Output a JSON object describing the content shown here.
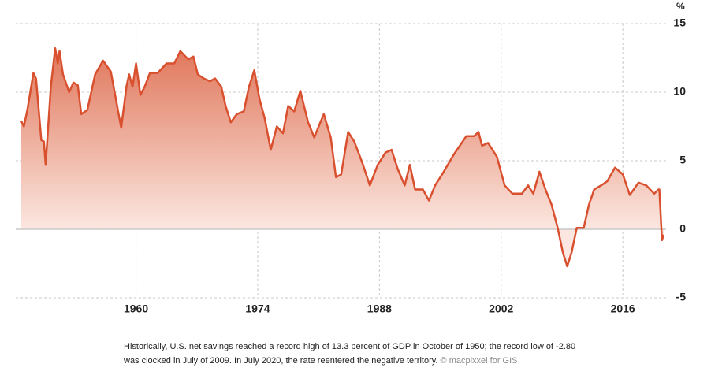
{
  "chart_data": {
    "type": "line",
    "unit": "%",
    "x": [
      1946.8,
      1947.1,
      1947.5,
      1948.2,
      1948.5,
      1949.1,
      1949.4,
      1949.6,
      1950.2,
      1950.7,
      1951.0,
      1951.2,
      1951.6,
      1952.3,
      1952.8,
      1953.3,
      1953.7,
      1954.4,
      1955.3,
      1956.2,
      1957.1,
      1958.0,
      1958.3,
      1958.9,
      1959.2,
      1959.6,
      1960.0,
      1960.5,
      1961.0,
      1961.6,
      1962.5,
      1963.5,
      1964.4,
      1965.1,
      1966.0,
      1966.6,
      1967.1,
      1967.8,
      1968.5,
      1969.1,
      1969.8,
      1970.3,
      1970.9,
      1971.6,
      1972.4,
      1973.0,
      1973.6,
      1974.2,
      1974.8,
      1975.5,
      1976.2,
      1976.9,
      1977.5,
      1978.2,
      1978.9,
      1979.8,
      1980.5,
      1981.2,
      1981.6,
      1982.4,
      1983.0,
      1983.6,
      1984.4,
      1985.1,
      1986.0,
      1986.9,
      1987.8,
      1988.7,
      1989.4,
      1990.1,
      1990.9,
      1991.5,
      1992.1,
      1993.0,
      1993.7,
      1994.4,
      1995.3,
      1996.6,
      1998.0,
      1998.9,
      1999.4,
      1999.8,
      2000.5,
      2001.5,
      2002.4,
      2003.3,
      2004.4,
      2005.1,
      2005.7,
      2006.4,
      2007.1,
      2007.8,
      2008.5,
      2009.1,
      2009.6,
      2010.1,
      2010.7,
      2011.5,
      2012.1,
      2012.7,
      2013.5,
      2014.2,
      2015.1,
      2016.0,
      2016.8,
      2017.8,
      2018.7,
      2019.6,
      2020.1,
      2020.2,
      2020.5,
      2020.7
    ],
    "series": [
      {
        "name": "Net savings",
        "color": "#d9502f",
        "values": [
          7.9,
          7.5,
          8.7,
          11.4,
          11,
          6.5,
          6.4,
          4.7,
          10.4,
          13.2,
          12.1,
          13,
          11.3,
          10,
          10.7,
          10.5,
          8.4,
          8.7,
          11.3,
          12.3,
          11.5,
          8.4,
          7.4,
          10.4,
          11.3,
          10.4,
          12.1,
          9.8,
          10.4,
          11.4,
          11.4,
          12.1,
          12.1,
          13,
          12.4,
          12.6,
          11.3,
          11,
          10.8,
          11,
          10.4,
          9,
          7.8,
          8.4,
          8.6,
          10.4,
          11.6,
          9.5,
          8.1,
          5.8,
          7.5,
          7,
          9,
          8.6,
          10.1,
          7.8,
          6.7,
          7.8,
          8.4,
          6.7,
          3.8,
          4,
          7.1,
          6.4,
          4.9,
          3.2,
          4.7,
          5.6,
          5.8,
          4.4,
          3.2,
          4.7,
          2.9,
          2.9,
          2.1,
          3.2,
          4.1,
          5.5,
          6.8,
          6.8,
          7.1,
          6.1,
          6.3,
          5.3,
          3.2,
          2.6,
          2.6,
          3.2,
          2.6,
          4.2,
          2.9,
          1.8,
          0.1,
          -1.7,
          -2.7,
          -1.7,
          0.1,
          0.1,
          1.8,
          2.9,
          3.2,
          3.5,
          4.5,
          4,
          2.5,
          3.4,
          3.2,
          2.6,
          2.9,
          2.9,
          -0.8,
          -0.4
        ]
      }
    ],
    "xlim": [
      1946.8,
      2020.7
    ],
    "xticks": [
      1960,
      1974,
      1988,
      2002,
      2016
    ],
    "ylim": [
      -5,
      15
    ],
    "yticks": [
      15,
      10,
      5,
      0,
      -5
    ],
    "grid": true,
    "caption": [
      "Historically, U.S. net savings reached a record high of 13.3 percent of GDP in October of 1950; the record low of -2.80",
      "was clocked in July of 2009. In July 2020, the rate reentered the negative territory."
    ],
    "credit": "© macpixxel for GIS"
  }
}
